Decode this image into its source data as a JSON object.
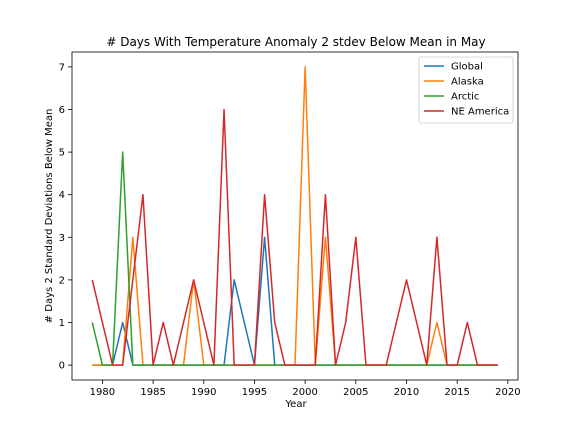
{
  "chart_data": {
    "type": "line",
    "title": "# Days With Temperature Anomaly 2 stdev Below Mean in May",
    "xlabel": "Year",
    "ylabel": "# Days 2 Standard Deviations Below Mean",
    "xlim": [
      1977,
      2021
    ],
    "ylim": [
      -0.35,
      7.35
    ],
    "xticks": [
      1980,
      1985,
      1990,
      1995,
      2000,
      2005,
      2010,
      2015,
      2020
    ],
    "yticks": [
      0,
      1,
      2,
      3,
      4,
      5,
      6,
      7
    ],
    "grid": false,
    "legend_position": "top-right",
    "x": [
      1979,
      1980,
      1981,
      1982,
      1983,
      1984,
      1985,
      1986,
      1987,
      1988,
      1989,
      1990,
      1991,
      1992,
      1993,
      1994,
      1995,
      1996,
      1997,
      1998,
      1999,
      2000,
      2001,
      2002,
      2003,
      2004,
      2005,
      2006,
      2007,
      2008,
      2009,
      2010,
      2011,
      2012,
      2013,
      2014,
      2015,
      2016,
      2017,
      2018,
      2019
    ],
    "series": [
      {
        "name": "Global",
        "color": "#1f77b4",
        "values": [
          0,
          0,
          0,
          1,
          0,
          0,
          0,
          0,
          0,
          0,
          0,
          0,
          0,
          0,
          2,
          1,
          0,
          3,
          0,
          0,
          0,
          0,
          0,
          0,
          0,
          0,
          0,
          0,
          0,
          0,
          0,
          0,
          0,
          0,
          0,
          0,
          0,
          0,
          0,
          0,
          0
        ]
      },
      {
        "name": "Alaska",
        "color": "#ff7f0e",
        "values": [
          0,
          0,
          0,
          0,
          3,
          0,
          0,
          0,
          0,
          0,
          2,
          0,
          0,
          0,
          0,
          0,
          0,
          0,
          0,
          0,
          0,
          7,
          0,
          3,
          0,
          0,
          0,
          0,
          0,
          0,
          0,
          0,
          0,
          0,
          1,
          0,
          0,
          0,
          0,
          0,
          0
        ]
      },
      {
        "name": "Arctic",
        "color": "#2ca02c",
        "values": [
          1,
          0,
          0,
          5,
          0,
          0,
          0,
          0,
          0,
          0,
          0,
          0,
          0,
          0,
          0,
          0,
          0,
          0,
          0,
          0,
          0,
          0,
          0,
          0,
          0,
          0,
          0,
          0,
          0,
          0,
          0,
          0,
          0,
          0,
          0,
          0,
          0,
          0,
          0,
          0,
          0
        ]
      },
      {
        "name": "NE America",
        "color": "#d62728",
        "values": [
          2,
          1,
          0,
          0,
          2,
          4,
          0,
          1,
          0,
          1,
          2,
          1,
          0,
          6,
          0,
          0,
          0,
          4,
          1,
          0,
          0,
          0,
          0,
          4,
          0,
          1,
          3,
          0,
          0,
          0,
          1,
          2,
          1,
          0,
          3,
          0,
          0,
          1,
          0,
          0,
          0
        ]
      }
    ]
  }
}
